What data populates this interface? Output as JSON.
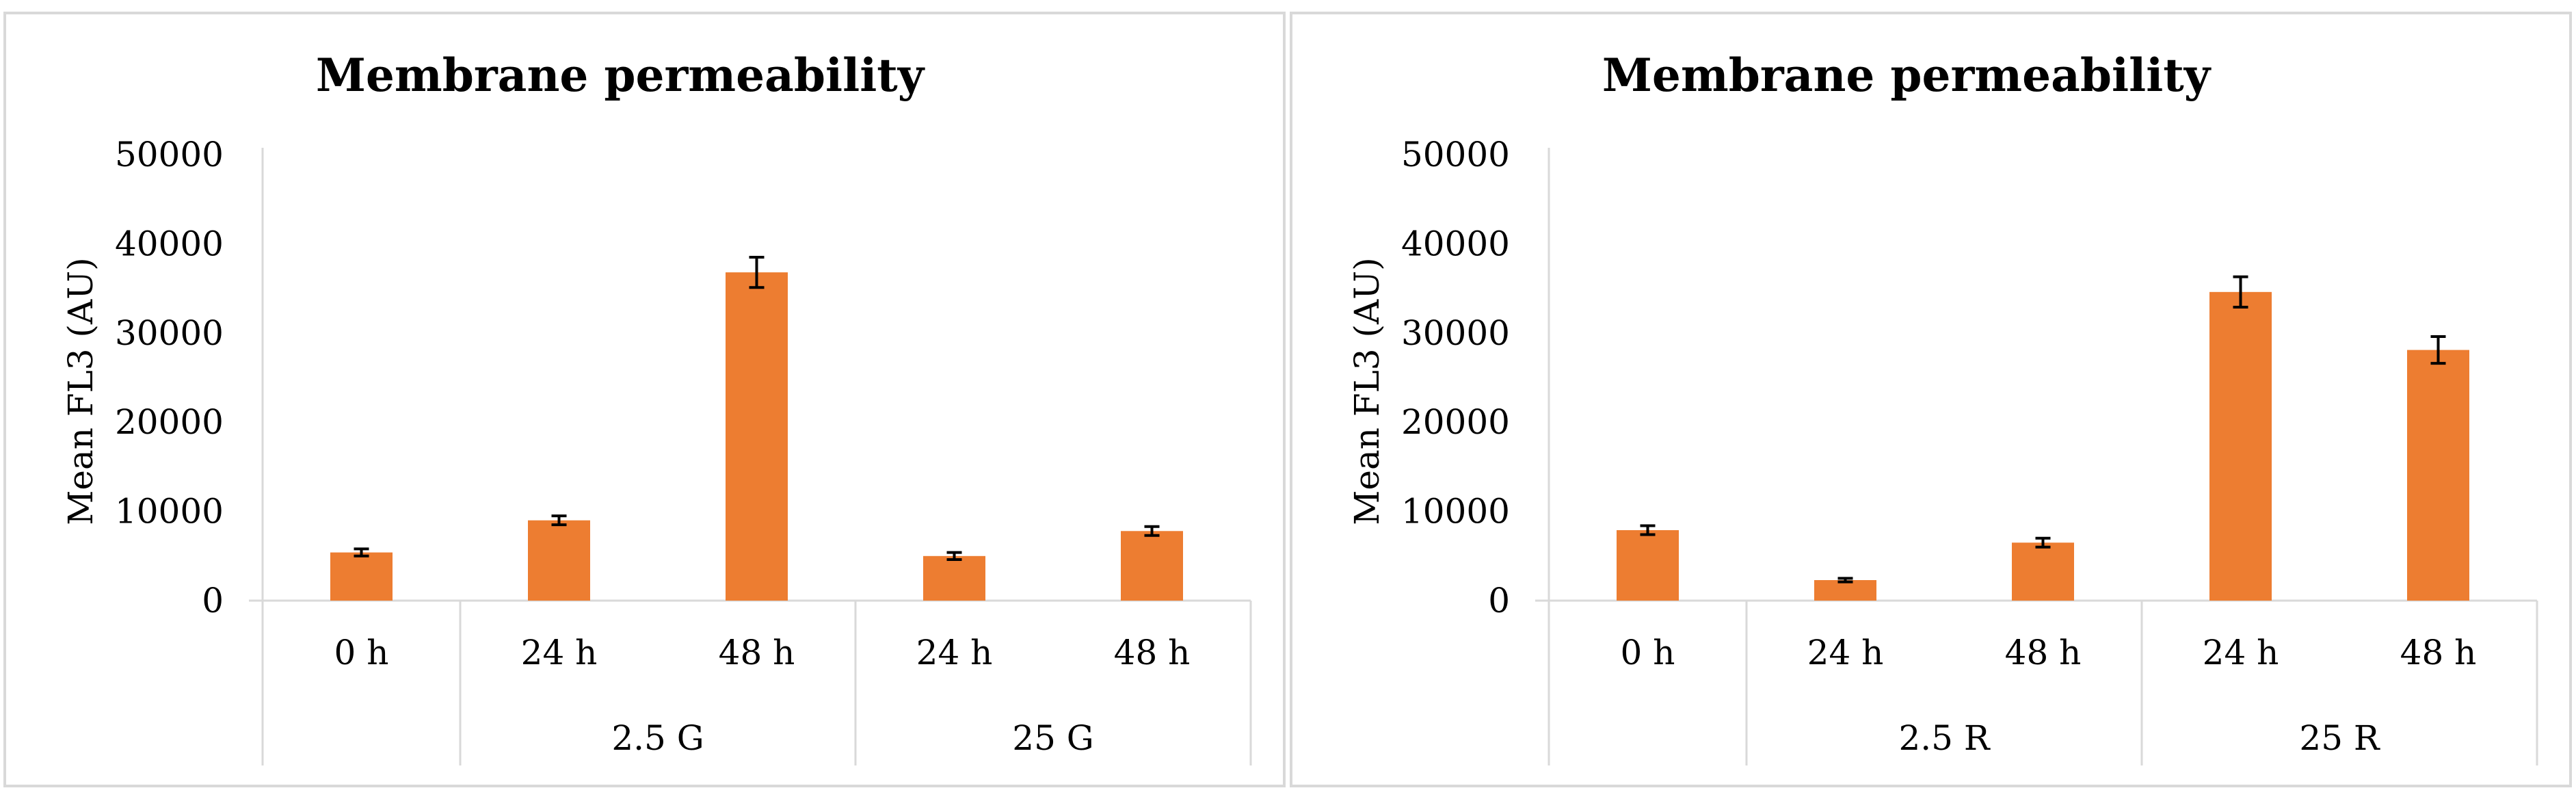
{
  "chart_data": [
    {
      "type": "bar",
      "title": "Membrane permeability",
      "ylabel": "Mean FL3 (AU)",
      "xlabel": "",
      "ylim": [
        0,
        50000
      ],
      "yticks": [
        "0",
        "10000",
        "20000",
        "30000",
        "40000",
        "50000"
      ],
      "categories": [
        "0 h",
        "24 h",
        "48 h",
        "24 h",
        "48 h"
      ],
      "groups": [
        {
          "label": "",
          "span": 1
        },
        {
          "label": "2.5 G",
          "span": 2
        },
        {
          "label": "25 G",
          "span": 2
        }
      ],
      "series": [
        {
          "values": [
            5400,
            9000,
            36800,
            5000,
            7800
          ],
          "errors": [
            400,
            500,
            1700,
            400,
            500
          ]
        }
      ],
      "bar_color": "#ed7d31",
      "grid": false
    },
    {
      "type": "bar",
      "title": "Membrane permeability",
      "ylabel": "Mean FL3 (AU)",
      "xlabel": "",
      "ylim": [
        0,
        50000
      ],
      "yticks": [
        "0",
        "10000",
        "20000",
        "30000",
        "40000",
        "50000"
      ],
      "categories": [
        "0 h",
        "24 h",
        "48 h",
        "24 h",
        "48 h"
      ],
      "groups": [
        {
          "label": "",
          "span": 1
        },
        {
          "label": "2.5 R",
          "span": 2
        },
        {
          "label": "25 R",
          "span": 2
        }
      ],
      "series": [
        {
          "values": [
            7900,
            2300,
            6500,
            34600,
            28100
          ],
          "errors": [
            500,
            200,
            500,
            1700,
            1500
          ]
        }
      ],
      "bar_color": "#ed7d31",
      "grid": false
    }
  ]
}
